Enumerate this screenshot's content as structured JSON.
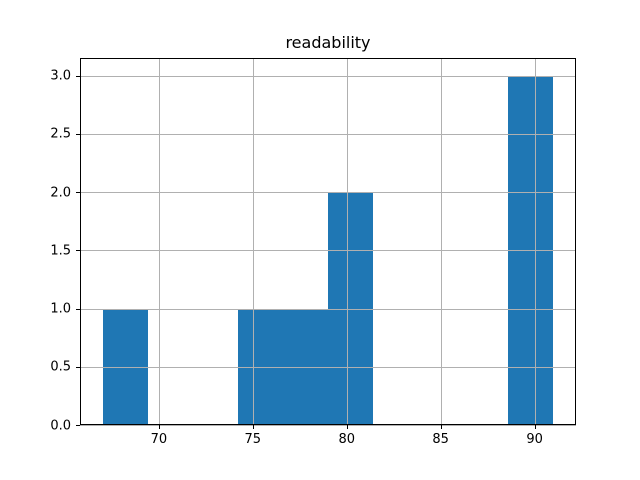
{
  "chart_data": {
    "type": "bar",
    "subtype": "histogram",
    "title": "readability",
    "bin_edges": [
      67.0,
      69.4,
      71.8,
      74.2,
      76.6,
      79.0,
      81.4,
      83.8,
      86.2,
      88.6,
      91.0
    ],
    "counts": [
      1,
      0,
      0,
      1,
      1,
      2,
      0,
      0,
      0,
      3
    ],
    "xlabel": "",
    "ylabel": "",
    "xlim": [
      65.8,
      92.2
    ],
    "ylim": [
      0,
      3.15
    ],
    "x_ticks": [
      70,
      75,
      80,
      85,
      90
    ],
    "x_tick_labels": [
      "70",
      "75",
      "80",
      "85",
      "90"
    ],
    "y_ticks": [
      0.0,
      0.5,
      1.0,
      1.5,
      2.0,
      2.5,
      3.0
    ],
    "y_tick_labels": [
      "0.0",
      "0.5",
      "1.0",
      "1.5",
      "2.0",
      "2.5",
      "3.0"
    ],
    "grid": true,
    "grid_over_bars": true,
    "legend": null,
    "bar_color": "#1f77b4",
    "grid_color": "#b0b0b0",
    "spine_color": "#000000",
    "text_color": "#000000",
    "background_color": "#ffffff"
  }
}
